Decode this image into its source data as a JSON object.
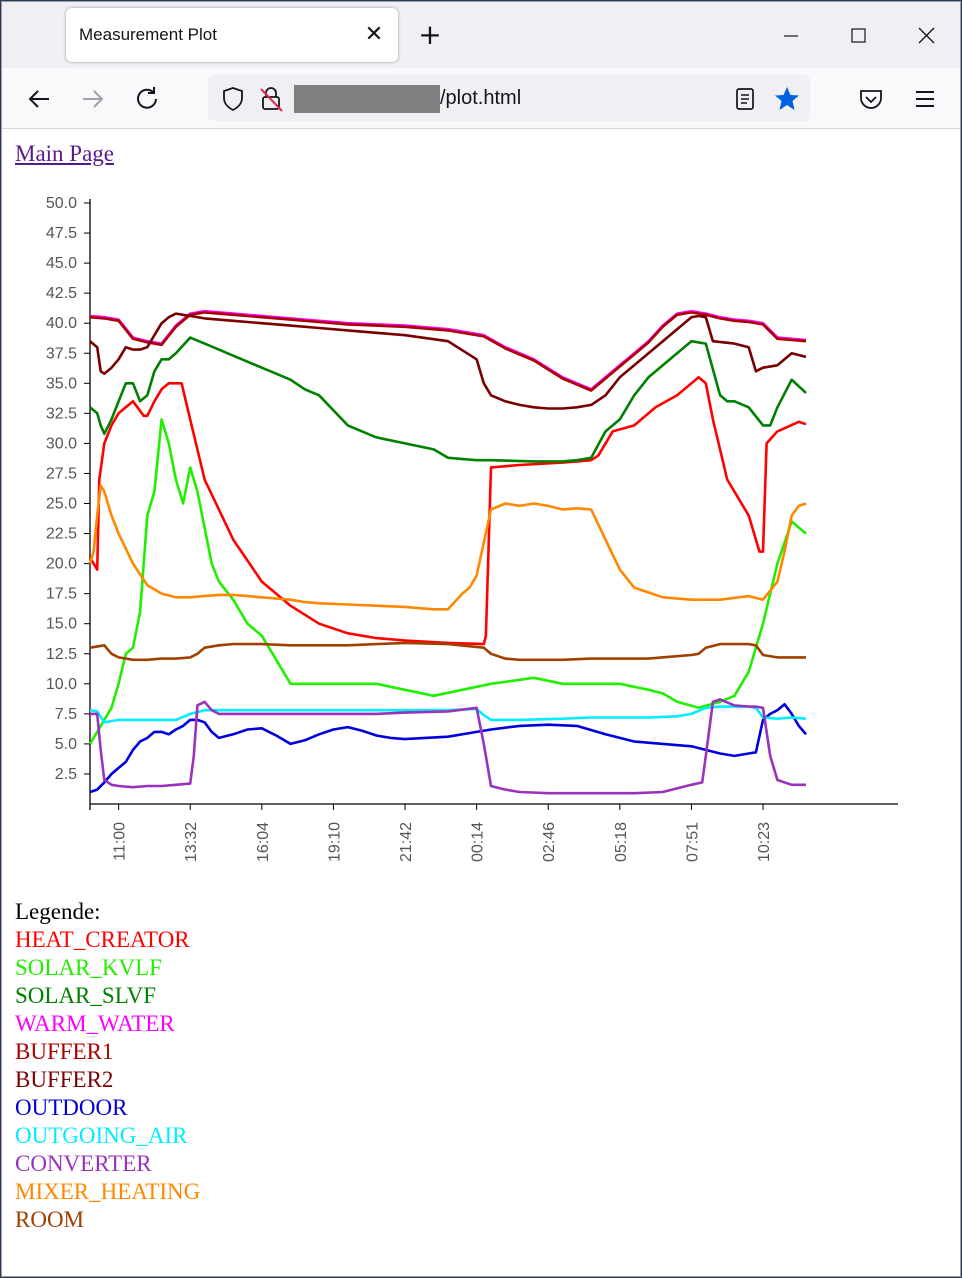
{
  "browser": {
    "tab_title": "Measurement Plot",
    "tab_close_glyph": "✕",
    "new_tab_glyph": "+",
    "url_suffix": "/plot.html",
    "icons": [
      "back-icon",
      "forward-icon",
      "reload-icon",
      "shield-icon",
      "lock-insecure-icon",
      "reader-view-icon",
      "bookmark-star-icon",
      "pocket-icon",
      "menu-icon",
      "minimize-icon",
      "maximize-icon",
      "close-icon"
    ]
  },
  "page": {
    "main_link": "Main Page",
    "legend_title": "Legende:"
  },
  "chart_data": {
    "type": "line",
    "title": "",
    "xlabel": "",
    "ylabel": "",
    "x_ticks": [
      "11:00",
      "13:32",
      "16:04",
      "19:10",
      "21:42",
      "00:14",
      "02:46",
      "05:18",
      "07:51",
      "10:23"
    ],
    "x_tick_positions": [
      4,
      14,
      24,
      34,
      44,
      54,
      64,
      74,
      84,
      94
    ],
    "x_range": [
      0,
      100
    ],
    "y_ticks": [
      "50.0",
      "47.5",
      "45.0",
      "42.5",
      "40.0",
      "37.5",
      "35.0",
      "32.5",
      "30.0",
      "27.5",
      "25.0",
      "22.5",
      "20.0",
      "17.5",
      "15.0",
      "12.5",
      "10.0",
      "7.5",
      "5.0",
      "2.5"
    ],
    "ylim": [
      0,
      50
    ],
    "grid": false,
    "series": [
      {
        "name": "HEAT_CREATOR",
        "color": "#ff0000",
        "x": [
          0,
          1,
          1.3,
          2,
          3,
          4,
          6,
          7.5,
          8,
          9,
          10,
          11,
          12,
          12.8,
          14,
          16,
          20,
          24,
          28,
          32,
          36,
          40,
          44,
          50,
          55,
          55.3,
          56,
          60,
          66,
          70,
          71,
          73,
          76,
          79,
          82,
          85,
          86,
          87,
          89,
          92,
          93,
          93.5,
          94,
          94.5,
          96,
          99,
          100
        ],
        "y": [
          20.5,
          19.5,
          27,
          30,
          31.5,
          32.5,
          33.5,
          32.3,
          32.3,
          33.5,
          34.5,
          35,
          35,
          35,
          32,
          27,
          22,
          18.5,
          16.5,
          15,
          14.2,
          13.8,
          13.6,
          13.4,
          13.3,
          14,
          28,
          28.2,
          28.4,
          28.6,
          29,
          31,
          31.5,
          33,
          34,
          35.5,
          35,
          32,
          27,
          24,
          22,
          21,
          21,
          30,
          31,
          31.8,
          31.6
        ]
      },
      {
        "name": "SOLAR_KVLF",
        "color": "#22ee00",
        "x": [
          0,
          1,
          2,
          3,
          4,
          5,
          6,
          7,
          7.5,
          8,
          9,
          10,
          11,
          12,
          13,
          14,
          15,
          17,
          18,
          20,
          22,
          24,
          26,
          28,
          30,
          32,
          36,
          40,
          44,
          48,
          52,
          56,
          62,
          66,
          70,
          74,
          78,
          80,
          82,
          85,
          88,
          90,
          92,
          94,
          96,
          98,
          100
        ],
        "y": [
          5,
          6,
          7,
          8,
          10,
          12.5,
          13,
          16,
          20,
          24,
          26,
          32,
          30,
          27,
          25,
          28,
          26,
          20,
          18.5,
          17,
          15,
          14,
          12,
          10,
          10,
          10,
          10,
          10,
          9.5,
          9,
          9.5,
          10,
          10.5,
          10,
          10,
          10,
          9.5,
          9.2,
          8.5,
          8,
          8.5,
          9,
          11,
          15,
          20,
          23.5,
          22.5
        ]
      },
      {
        "name": "SOLAR_SLVF",
        "color": "#008000",
        "x": [
          0,
          1,
          1.5,
          2,
          3,
          4,
          5,
          6,
          7,
          8,
          9,
          10,
          11,
          12,
          14,
          16,
          18,
          20,
          22,
          24,
          26,
          28,
          30,
          32,
          36,
          40,
          44,
          48,
          50,
          54,
          56,
          62,
          66,
          68,
          70,
          72,
          74,
          76,
          78,
          80,
          82,
          84,
          86,
          88,
          89,
          90,
          92,
          94,
          95,
          96,
          98,
          100
        ],
        "y": [
          33,
          32.5,
          31.5,
          30.8,
          32,
          33.5,
          35,
          35,
          33.5,
          34,
          36,
          37,
          37,
          37.5,
          38.8,
          38.3,
          37.8,
          37.3,
          36.8,
          36.3,
          35.8,
          35.3,
          34.5,
          34,
          31.5,
          30.5,
          30,
          29.5,
          28.8,
          28.6,
          28.6,
          28.5,
          28.5,
          28.6,
          28.8,
          31,
          32,
          34,
          35.5,
          36.5,
          37.5,
          38.5,
          38.3,
          34,
          33.5,
          33.5,
          33,
          31.5,
          31.5,
          33,
          35.3,
          34.2
        ]
      },
      {
        "name": "WARM_WATER",
        "color": "#ff00ff",
        "x": [
          0,
          2,
          4,
          6,
          8,
          10,
          12,
          14,
          16,
          20,
          24,
          28,
          32,
          36,
          40,
          44,
          50,
          55,
          58,
          62,
          66,
          70,
          72,
          74,
          76,
          78,
          80,
          82,
          84,
          86,
          88,
          90,
          92,
          94,
          96,
          98,
          100
        ],
        "y": [
          40.6,
          40.5,
          40.3,
          38.8,
          38.5,
          38.3,
          39.8,
          40.8,
          41,
          40.8,
          40.6,
          40.4,
          40.2,
          40,
          39.9,
          39.8,
          39.5,
          39,
          38,
          37,
          35.5,
          34.5,
          35.5,
          36.5,
          37.5,
          38.5,
          39.8,
          40.8,
          41,
          40.8,
          40.5,
          40.3,
          40.2,
          40,
          38.8,
          38.7,
          38.6
        ]
      },
      {
        "name": "BUFFER1",
        "color": "#aa0000",
        "x": [
          0,
          2,
          4,
          6,
          8,
          10,
          12,
          14,
          16,
          20,
          24,
          28,
          32,
          36,
          40,
          44,
          50,
          55,
          58,
          62,
          66,
          70,
          72,
          74,
          76,
          78,
          80,
          82,
          84,
          86,
          88,
          90,
          92,
          94,
          96,
          98,
          100
        ],
        "y": [
          40.5,
          40.4,
          40.2,
          38.7,
          38.4,
          38.2,
          39.7,
          40.7,
          40.9,
          40.7,
          40.5,
          40.3,
          40.1,
          39.9,
          39.8,
          39.7,
          39.4,
          38.9,
          37.9,
          36.9,
          35.4,
          34.4,
          35.4,
          36.4,
          37.4,
          38.4,
          39.7,
          40.7,
          40.9,
          40.7,
          40.4,
          40.2,
          40.1,
          39.9,
          38.7,
          38.6,
          38.5
        ]
      },
      {
        "name": "BUFFER2",
        "color": "#7a0000",
        "x": [
          0,
          1,
          1.5,
          2,
          3,
          4,
          5,
          6,
          7,
          8,
          9,
          10,
          11,
          12,
          14,
          16,
          20,
          24,
          28,
          32,
          36,
          40,
          44,
          50,
          54,
          55,
          56,
          58,
          60,
          62,
          64,
          66,
          68,
          70,
          72,
          74,
          76,
          78,
          80,
          82,
          84,
          85,
          86,
          87,
          90,
          92,
          93,
          94,
          96,
          98,
          100
        ],
        "y": [
          38.5,
          38,
          36,
          35.8,
          36.3,
          37,
          38,
          37.8,
          37.8,
          38,
          39,
          40,
          40.5,
          40.8,
          40.6,
          40.4,
          40.2,
          40,
          39.8,
          39.6,
          39.4,
          39.2,
          39,
          38.5,
          37,
          35,
          34,
          33.5,
          33.2,
          33,
          32.9,
          32.9,
          33,
          33.2,
          34,
          35.5,
          36.5,
          37.5,
          38.5,
          39.5,
          40.5,
          40.6,
          40.5,
          38.5,
          38.3,
          38,
          36,
          36.3,
          36.5,
          37.5,
          37.2
        ]
      },
      {
        "name": "OUTDOOR",
        "color": "#0000dd",
        "x": [
          0,
          1,
          2,
          3,
          4,
          5,
          6,
          7,
          8,
          9,
          10,
          11,
          12,
          13,
          14,
          15,
          16,
          17,
          18,
          20,
          22,
          24,
          26,
          28,
          30,
          32,
          34,
          36,
          38,
          40,
          42,
          44,
          50,
          54,
          56,
          60,
          64,
          68,
          72,
          76,
          80,
          84,
          86,
          88,
          90,
          92,
          93,
          94,
          95,
          96,
          97,
          98,
          99,
          100
        ],
        "y": [
          1,
          1.2,
          1.8,
          2.5,
          3,
          3.5,
          4.5,
          5.2,
          5.5,
          6,
          6,
          5.8,
          6.2,
          6.5,
          7,
          7,
          6.8,
          6,
          5.5,
          5.8,
          6.2,
          6.3,
          5.7,
          5,
          5.3,
          5.8,
          6.2,
          6.4,
          6.1,
          5.7,
          5.5,
          5.4,
          5.6,
          6,
          6.2,
          6.5,
          6.6,
          6.5,
          5.8,
          5.2,
          5,
          4.8,
          4.5,
          4.2,
          4,
          4.2,
          4.3,
          7,
          7.5,
          7.8,
          8.3,
          7.5,
          6.5,
          5.8
        ]
      },
      {
        "name": "OUTGOING_AIR",
        "color": "#00eeff",
        "x": [
          0,
          1,
          2,
          4,
          6,
          8,
          10,
          12,
          14,
          16,
          18,
          20,
          24,
          28,
          32,
          36,
          40,
          44,
          50,
          54,
          55,
          56,
          60,
          66,
          70,
          74,
          78,
          82,
          84,
          86,
          88,
          90,
          92,
          93,
          94,
          96,
          98,
          100
        ],
        "y": [
          7.8,
          7.7,
          6.8,
          7,
          7,
          7,
          7,
          7,
          7.5,
          7.8,
          7.8,
          7.8,
          7.8,
          7.8,
          7.8,
          7.8,
          7.8,
          7.8,
          7.8,
          7.9,
          7.4,
          7,
          7,
          7.1,
          7.2,
          7.2,
          7.2,
          7.3,
          7.5,
          8,
          8.1,
          8.1,
          8.1,
          8,
          7.2,
          7.1,
          7.2,
          7.1
        ]
      },
      {
        "name": "CONVERTER",
        "color": "#9933bb",
        "x": [
          0,
          1,
          1.5,
          2,
          3,
          4,
          6,
          8,
          10,
          12,
          14,
          14.5,
          15,
          16,
          17,
          18,
          20,
          24,
          28,
          32,
          36,
          40,
          44,
          50,
          54,
          55,
          56,
          58,
          60,
          64,
          68,
          72,
          76,
          80,
          84,
          85.5,
          86,
          87,
          88,
          90,
          92,
          93,
          94,
          95,
          96,
          98,
          100
        ],
        "y": [
          7.5,
          7.5,
          4.5,
          2,
          1.6,
          1.5,
          1.4,
          1.5,
          1.5,
          1.6,
          1.7,
          4,
          8.2,
          8.5,
          7.8,
          7.5,
          7.5,
          7.5,
          7.5,
          7.5,
          7.5,
          7.5,
          7.6,
          7.7,
          8,
          5,
          1.5,
          1.2,
          1,
          0.9,
          0.9,
          0.9,
          0.9,
          1,
          1.6,
          1.8,
          4,
          8.5,
          8.7,
          8.2,
          8.1,
          8.1,
          8,
          4,
          2,
          1.6,
          1.6
        ]
      },
      {
        "name": "MIXER_HEATING",
        "color": "#ff8800",
        "x": [
          0,
          0.5,
          1,
          1.5,
          2,
          3,
          4,
          6,
          8,
          10,
          12,
          14,
          16,
          18,
          20,
          22,
          24,
          26,
          28,
          30,
          32,
          36,
          40,
          44,
          48,
          50,
          52,
          53,
          54,
          56,
          58,
          60,
          62,
          64,
          66,
          68,
          70,
          72,
          74,
          76,
          80,
          84,
          88,
          92,
          94,
          96,
          97,
          98,
          99,
          100
        ],
        "y": [
          20,
          21,
          24,
          26.5,
          26,
          24,
          22.5,
          20,
          18.2,
          17.5,
          17.2,
          17.2,
          17.3,
          17.4,
          17.4,
          17.3,
          17.2,
          17.1,
          17,
          16.8,
          16.7,
          16.6,
          16.5,
          16.4,
          16.2,
          16.2,
          17.5,
          18,
          19,
          24.5,
          25,
          24.8,
          25,
          24.8,
          24.5,
          24.6,
          24.5,
          22,
          19.5,
          18,
          17.2,
          17,
          17,
          17.3,
          17,
          18.5,
          21,
          24,
          24.8,
          25
        ]
      },
      {
        "name": "ROOM",
        "color": "#a04000",
        "x": [
          0,
          2,
          3,
          4,
          6,
          8,
          10,
          12,
          14,
          15,
          16,
          18,
          20,
          24,
          28,
          32,
          36,
          40,
          44,
          50,
          55,
          56,
          58,
          60,
          66,
          70,
          74,
          78,
          82,
          84,
          85,
          86,
          88,
          90,
          92,
          93,
          94,
          96,
          98,
          100
        ],
        "y": [
          13,
          13.2,
          12.5,
          12.2,
          12,
          12,
          12.1,
          12.1,
          12.2,
          12.5,
          13,
          13.2,
          13.3,
          13.3,
          13.2,
          13.2,
          13.2,
          13.3,
          13.4,
          13.3,
          13,
          12.5,
          12.1,
          12,
          12,
          12.1,
          12.1,
          12.1,
          12.3,
          12.4,
          12.5,
          13,
          13.3,
          13.3,
          13.3,
          13.2,
          12.4,
          12.2,
          12.2,
          12.2
        ]
      }
    ]
  }
}
